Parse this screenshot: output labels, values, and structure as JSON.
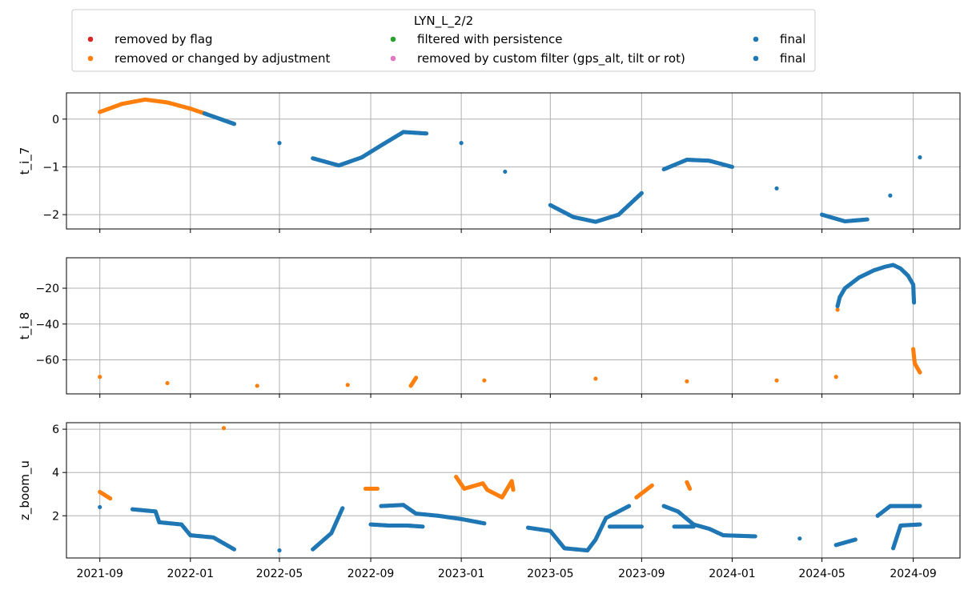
{
  "chart_data": {
    "type": "scatter",
    "legend": {
      "title": "LYN_L_2/2",
      "placement": "top",
      "entries": [
        {
          "label": "removed by flag",
          "color": "#d62728"
        },
        {
          "label": "removed or changed by adjustment",
          "color": "#ff7f0e"
        },
        {
          "label": "filtered with persistence",
          "color": "#2ca02c"
        },
        {
          "label": "removed by custom filter (gps_alt, tilt or rot)",
          "color": "#e377c2"
        },
        {
          "label": "final",
          "color": "#1f77b4"
        },
        {
          "label": "final",
          "color": "#1f77b4"
        }
      ]
    },
    "x_axis": {
      "type": "date",
      "range": [
        "2021-07-18",
        "2024-11-03"
      ],
      "ticks": [
        "2021-09",
        "2022-01",
        "2022-05",
        "2022-09",
        "2023-01",
        "2023-05",
        "2023-09",
        "2024-01",
        "2024-05",
        "2024-09"
      ],
      "grid": true
    },
    "panels": [
      {
        "ylabel": "t_i_7",
        "ylim": [
          -2.3,
          0.55
        ],
        "yticks": [
          0,
          -1,
          -2
        ],
        "ytick_labels": [
          "0",
          "−1",
          "−2"
        ],
        "series": [
          {
            "color": "#ff7f0e",
            "points": [
              [
                "2021-09-01",
                0.15
              ],
              [
                "2021-10-01",
                0.32
              ],
              [
                "2021-11-01",
                0.41
              ],
              [
                "2021-12-01",
                0.35
              ],
              [
                "2022-01-01",
                0.22
              ],
              [
                "2022-01-20",
                0.12
              ]
            ]
          },
          {
            "color": "#1f77b4",
            "points": [
              [
                "2022-01-20",
                0.12
              ],
              [
                "2022-03-01",
                -0.1
              ],
              [
                "2022-05-01",
                -0.5
              ],
              [
                "2022-06-15",
                -0.82
              ],
              [
                "2022-07-20",
                -0.97
              ],
              [
                "2022-08-20",
                -0.8
              ],
              [
                "2022-09-15",
                -0.55
              ],
              [
                "2022-10-15",
                -0.27
              ],
              [
                "2022-11-15",
                -0.3
              ],
              [
                "2023-01-01",
                -0.5
              ],
              [
                "2023-03-01",
                -1.1
              ],
              [
                "2023-05-01",
                -1.8
              ],
              [
                "2023-06-01",
                -2.05
              ],
              [
                "2023-07-01",
                -2.15
              ],
              [
                "2023-08-01",
                -2.0
              ],
              [
                "2023-09-01",
                -1.55
              ],
              [
                "2023-10-01",
                -1.05
              ],
              [
                "2023-11-01",
                -0.85
              ],
              [
                "2023-12-01",
                -0.87
              ],
              [
                "2024-01-01",
                -1.0
              ],
              [
                "2024-03-01",
                -1.45
              ],
              [
                "2024-05-01",
                -2.0
              ],
              [
                "2024-06-01",
                -2.14
              ],
              [
                "2024-07-01",
                -2.1
              ],
              [
                "2024-08-01",
                -1.6
              ],
              [
                "2024-09-10",
                -0.8
              ]
            ]
          }
        ]
      },
      {
        "ylabel": "t_i_8",
        "ylim": [
          -79,
          -3
        ],
        "yticks": [
          -20,
          -40,
          -60
        ],
        "ytick_labels": [
          "−20",
          "−40",
          "−60"
        ],
        "series": [
          {
            "color": "#ff7f0e",
            "points": [
              [
                "2021-09-01",
                -69.5
              ],
              [
                "2021-12-01",
                -73.0
              ],
              [
                "2022-04-01",
                -74.5
              ],
              [
                "2022-08-01",
                -74.0
              ],
              [
                "2022-10-25",
                -74.5
              ],
              [
                "2022-11-01",
                -70.0
              ],
              [
                "2023-02-01",
                -71.5
              ],
              [
                "2023-07-01",
                -70.5
              ],
              [
                "2023-11-01",
                -72.0
              ],
              [
                "2024-03-01",
                -71.5
              ],
              [
                "2024-05-20",
                -69.5
              ],
              [
                "2024-05-22",
                -32.0
              ],
              [
                "2024-09-01",
                -54.0
              ],
              [
                "2024-09-03",
                -62.0
              ],
              [
                "2024-09-10",
                -67.0
              ]
            ]
          },
          {
            "color": "#1f77b4",
            "points": [
              [
                "2024-05-22",
                -30.0
              ],
              [
                "2024-05-25",
                -25.0
              ],
              [
                "2024-06-01",
                -20.0
              ],
              [
                "2024-06-20",
                -14.0
              ],
              [
                "2024-07-10",
                -10.0
              ],
              [
                "2024-07-25",
                -8.0
              ],
              [
                "2024-08-05",
                -7.0
              ],
              [
                "2024-08-15",
                -9.0
              ],
              [
                "2024-08-25",
                -13.0
              ],
              [
                "2024-09-01",
                -18.0
              ],
              [
                "2024-09-02",
                -28.0
              ]
            ]
          }
        ]
      },
      {
        "ylabel": "z_boom_u",
        "ylim": [
          0.05,
          6.3
        ],
        "yticks": [
          2,
          4,
          6
        ],
        "ytick_labels": [
          "2",
          "4",
          "6"
        ],
        "series": [
          {
            "color": "#ff7f0e",
            "points": [
              [
                "2021-09-01",
                3.1
              ],
              [
                "2021-09-15",
                2.8
              ],
              [
                "2022-02-15",
                6.05
              ],
              [
                "2022-08-25",
                3.25
              ],
              [
                "2022-09-10",
                3.25
              ],
              [
                "2022-12-25",
                3.8
              ],
              [
                "2023-01-05",
                3.25
              ],
              [
                "2023-01-30",
                3.5
              ],
              [
                "2023-02-05",
                3.2
              ],
              [
                "2023-02-25",
                2.85
              ],
              [
                "2023-03-10",
                3.6
              ],
              [
                "2023-03-12",
                3.2
              ],
              [
                "2023-08-25",
                2.85
              ],
              [
                "2023-09-15",
                3.4
              ],
              [
                "2023-11-01",
                3.55
              ],
              [
                "2023-11-05",
                3.25
              ]
            ]
          },
          {
            "color": "#1f77b4",
            "points": [
              [
                "2021-09-01",
                2.4
              ],
              [
                "2021-10-15",
                2.3
              ],
              [
                "2021-11-15",
                2.2
              ],
              [
                "2021-11-20",
                1.7
              ],
              [
                "2021-12-20",
                1.6
              ],
              [
                "2022-01-01",
                1.1
              ],
              [
                "2022-02-01",
                1.0
              ],
              [
                "2022-03-01",
                0.45
              ],
              [
                "2022-05-01",
                0.4
              ],
              [
                "2022-06-15",
                0.45
              ],
              [
                "2022-07-10",
                1.2
              ],
              [
                "2022-07-25",
                2.35
              ],
              [
                "2022-09-15",
                2.45
              ],
              [
                "2022-10-15",
                2.5
              ],
              [
                "2022-11-01",
                2.1
              ],
              [
                "2022-12-01",
                2.0
              ],
              [
                "2023-01-01",
                1.85
              ],
              [
                "2023-02-01",
                1.65
              ],
              [
                "2023-04-01",
                1.45
              ],
              [
                "2023-05-01",
                1.3
              ],
              [
                "2023-05-20",
                0.5
              ],
              [
                "2023-06-20",
                0.4
              ],
              [
                "2023-07-01",
                0.9
              ],
              [
                "2023-07-15",
                1.9
              ],
              [
                "2023-08-15",
                2.45
              ],
              [
                "2023-10-01",
                2.45
              ],
              [
                "2023-10-20",
                2.2
              ],
              [
                "2023-11-10",
                1.6
              ],
              [
                "2023-12-01",
                1.4
              ],
              [
                "2023-12-20",
                1.1
              ],
              [
                "2024-02-01",
                1.05
              ],
              [
                "2024-04-01",
                0.95
              ],
              [
                "2024-05-20",
                0.65
              ],
              [
                "2024-06-15",
                0.9
              ],
              [
                "2024-07-15",
                2.0
              ],
              [
                "2024-08-01",
                2.45
              ],
              [
                "2024-09-10",
                2.45
              ]
            ]
          },
          {
            "color": "#1f77b4",
            "points": [
              [
                "2022-09-01",
                1.6
              ],
              [
                "2022-09-25",
                1.55
              ],
              [
                "2022-10-20",
                1.55
              ],
              [
                "2022-11-10",
                1.5
              ],
              [
                "2023-07-20",
                1.5
              ],
              [
                "2023-09-01",
                1.5
              ],
              [
                "2023-10-15",
                1.5
              ],
              [
                "2023-11-10",
                1.5
              ],
              [
                "2024-08-05",
                0.5
              ],
              [
                "2024-08-15",
                1.55
              ],
              [
                "2024-09-10",
                1.6
              ]
            ]
          }
        ]
      }
    ]
  }
}
